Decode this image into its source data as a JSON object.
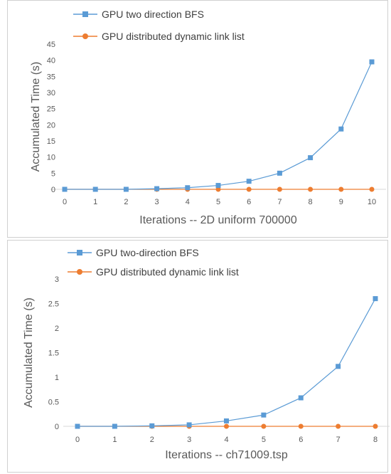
{
  "charts": [
    {
      "id": "top",
      "chart_data": {
        "type": "line",
        "categories": [
          "0",
          "1",
          "2",
          "3",
          "4",
          "5",
          "6",
          "7",
          "8",
          "9",
          "10"
        ],
        "series": [
          {
            "name": "GPU two direction BFS",
            "color": "#5b9bd5",
            "marker": "square",
            "values": [
              0,
              0,
              0,
              0.2,
              0.5,
              1.2,
              2.5,
              5,
              9.8,
              18.7,
              39.5
            ]
          },
          {
            "name": "GPU distributed dynamic link list",
            "color": "#ed7d31",
            "marker": "circle",
            "values": [
              0,
              0,
              0,
              0,
              0,
              0,
              0,
              0,
              0,
              0,
              0
            ]
          }
        ],
        "title": "",
        "xlabel": "Iterations  --  2D uniform  700000",
        "ylabel": "Accumulated  Time  (s)",
        "ylim": [
          0,
          45
        ],
        "yticks": [
          "0",
          "5",
          "10",
          "15",
          "20",
          "25",
          "30",
          "35",
          "40",
          "45"
        ],
        "grid": false,
        "legend": "top-left"
      }
    },
    {
      "id": "bottom",
      "chart_data": {
        "type": "line",
        "categories": [
          "0",
          "1",
          "2",
          "3",
          "4",
          "5",
          "6",
          "7",
          "8"
        ],
        "series": [
          {
            "name": "GPU two-direction BFS",
            "color": "#5b9bd5",
            "marker": "square",
            "values": [
              0,
              0,
              0.01,
              0.03,
              0.11,
              0.23,
              0.58,
              1.22,
              2.6
            ]
          },
          {
            "name": "GPU distributed dynamic link list",
            "color": "#ed7d31",
            "marker": "circle",
            "values": [
              0,
              0,
              0,
              0,
              0,
              0,
              0,
              0,
              0
            ]
          }
        ],
        "title": "",
        "xlabel": "Iterations  --  ch71009.tsp",
        "ylabel": "Accumulated  Time  (s)",
        "ylim": [
          0,
          3
        ],
        "yticks": [
          "0",
          "0.5",
          "1",
          "1.5",
          "2",
          "2.5",
          "3"
        ],
        "grid": false,
        "legend": "top-left"
      }
    }
  ]
}
